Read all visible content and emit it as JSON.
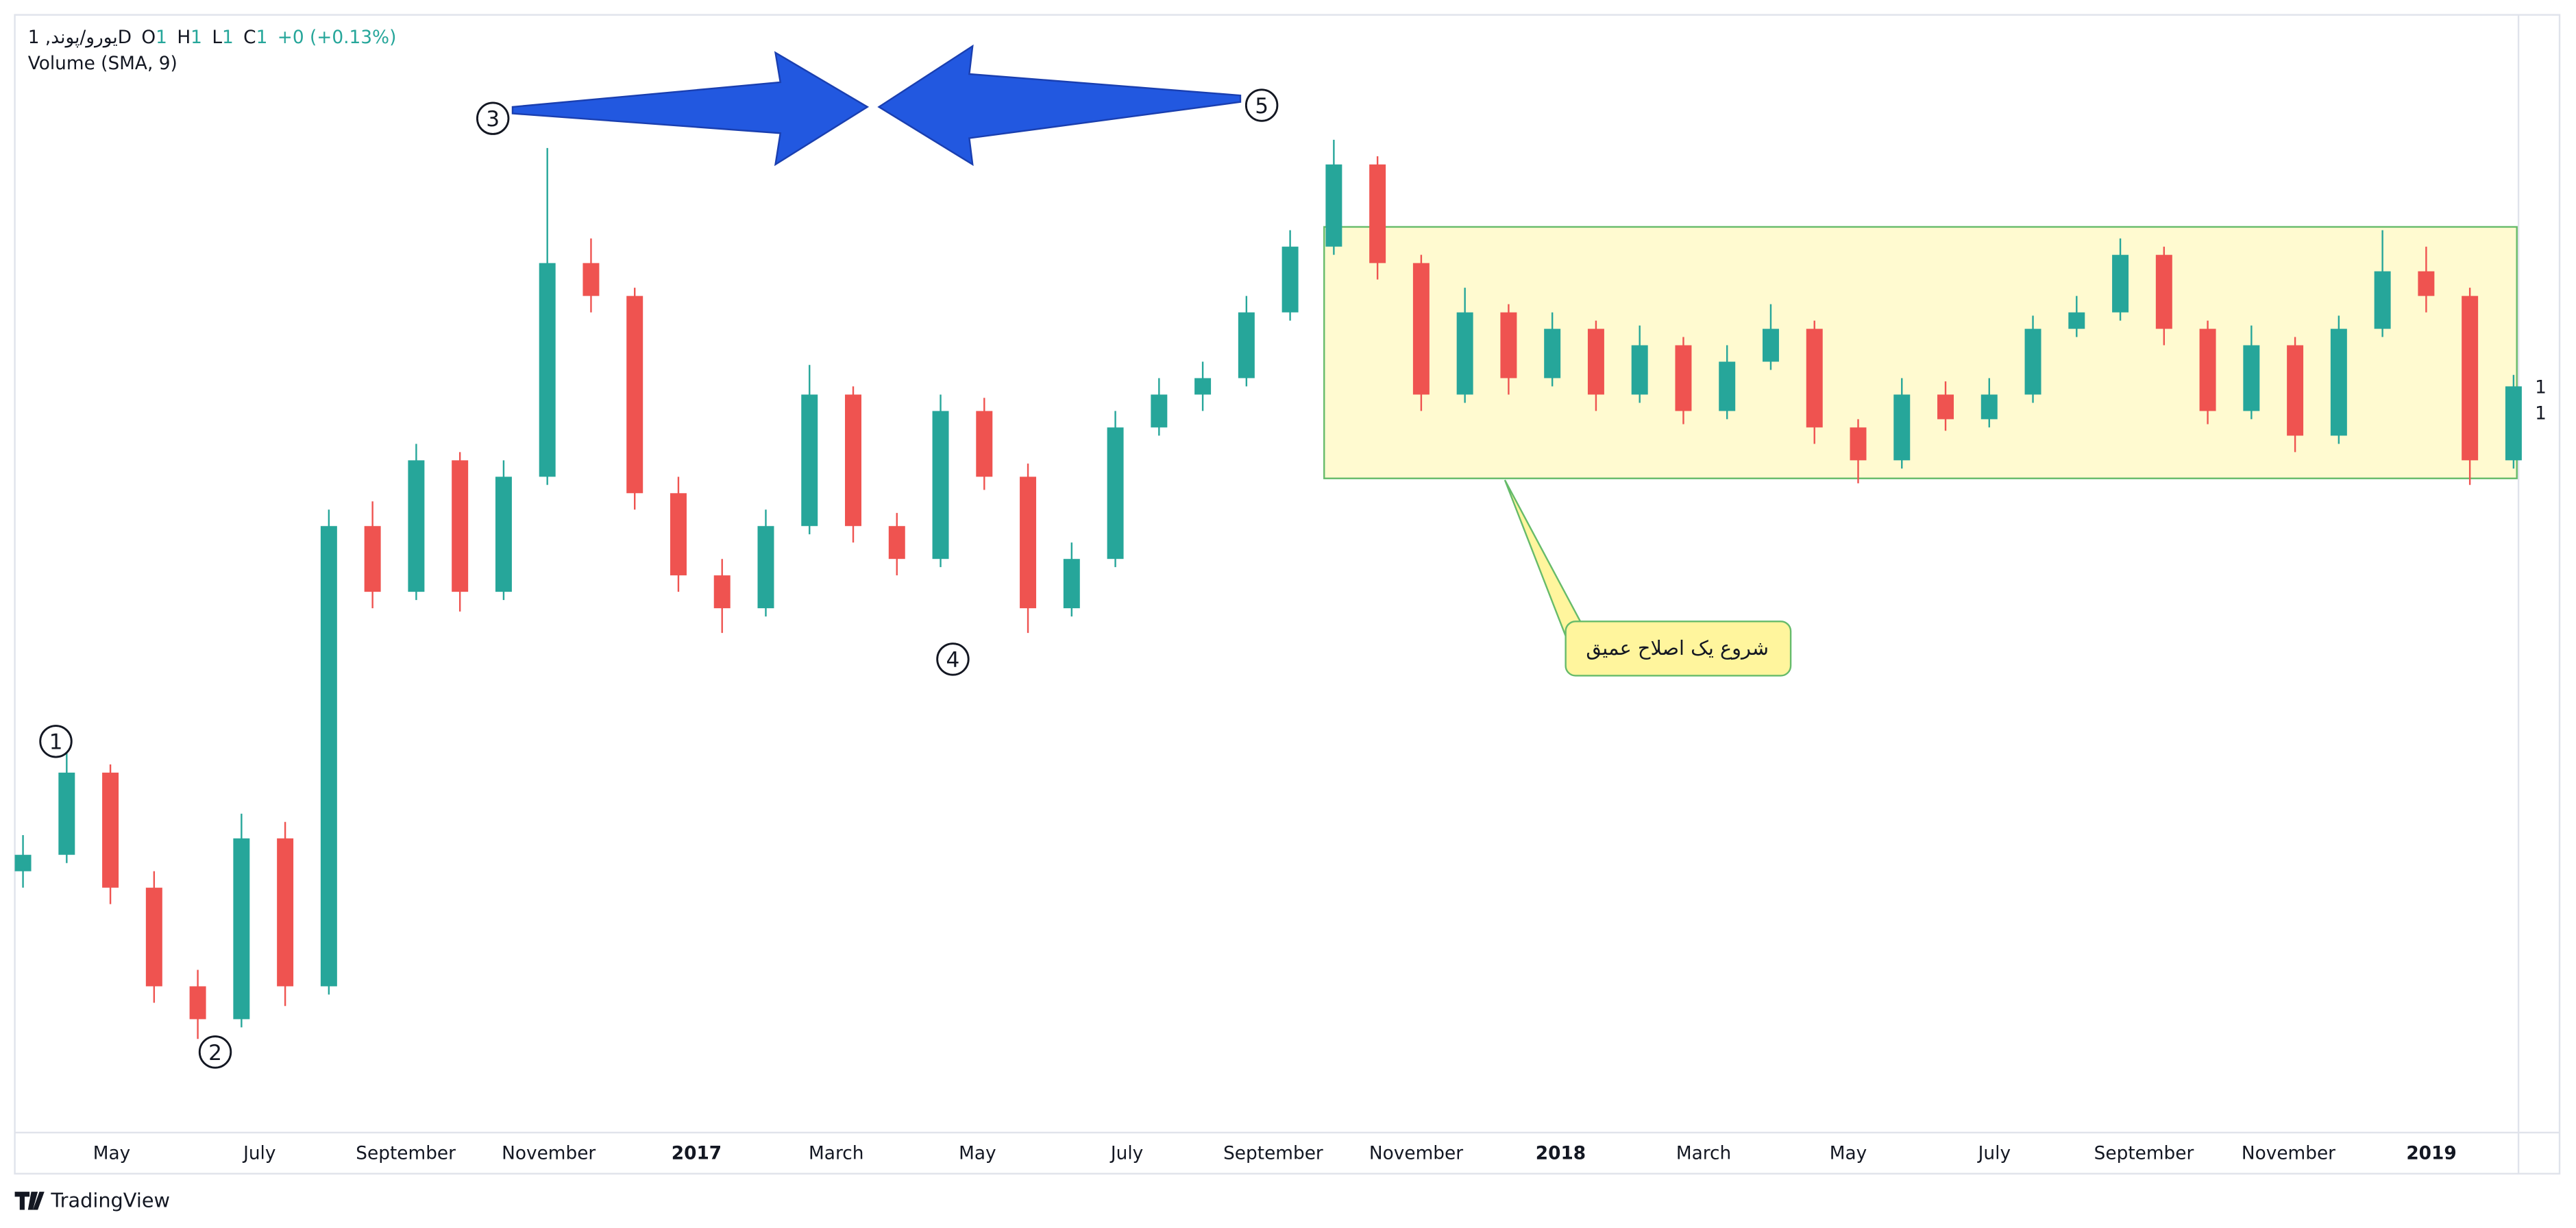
{
  "chart_data": {
    "type": "candlestick",
    "legend": {
      "symbol": "یورو/پوند, 1D",
      "o_label": "O",
      "o": "1",
      "h_label": "H",
      "h": "1",
      "l_label": "L",
      "l": "1",
      "c_label": "C",
      "c": "1",
      "change": "+0 (+0.13%)"
    },
    "indicator": "Volume (SMA, 9)",
    "price_labels": [
      "1",
      "1"
    ],
    "wave_labels": [
      "1",
      "2",
      "3",
      "4",
      "5"
    ],
    "callout": "شروع یک اصلاح عمیق",
    "x_labels": [
      "May",
      "July",
      "September",
      "November",
      "2017",
      "March",
      "May",
      "July",
      "September",
      "November",
      "2018",
      "March",
      "May",
      "July",
      "September",
      "November",
      "2019"
    ],
    "brand": "TradingView",
    "up_color": "#26a69a",
    "down_color": "#ef5350",
    "ylim": [
      0,
      680
    ],
    "ohlc": [
      [
        160,
        182,
        150,
        170
      ],
      [
        170,
        232,
        165,
        220
      ],
      [
        220,
        225,
        140,
        150
      ],
      [
        150,
        160,
        80,
        90
      ],
      [
        90,
        100,
        58,
        70
      ],
      [
        70,
        195,
        65,
        180
      ],
      [
        180,
        190,
        78,
        90
      ],
      [
        90,
        380,
        85,
        370
      ],
      [
        370,
        385,
        320,
        330
      ],
      [
        330,
        420,
        325,
        410
      ],
      [
        410,
        415,
        318,
        330
      ],
      [
        330,
        410,
        325,
        400
      ],
      [
        400,
        600,
        395,
        530
      ],
      [
        530,
        545,
        500,
        510
      ],
      [
        510,
        515,
        380,
        390
      ],
      [
        390,
        400,
        330,
        340
      ],
      [
        340,
        350,
        305,
        320
      ],
      [
        320,
        380,
        315,
        370
      ],
      [
        370,
        468,
        365,
        450
      ],
      [
        450,
        455,
        360,
        370
      ],
      [
        370,
        378,
        340,
        350
      ],
      [
        350,
        450,
        345,
        440
      ],
      [
        440,
        448,
        392,
        400
      ],
      [
        400,
        408,
        305,
        320
      ],
      [
        320,
        360,
        315,
        350
      ],
      [
        350,
        440,
        345,
        430
      ],
      [
        430,
        460,
        425,
        450
      ],
      [
        450,
        470,
        440,
        460
      ],
      [
        460,
        510,
        455,
        500
      ],
      [
        500,
        550,
        495,
        540
      ],
      [
        540,
        605,
        535,
        590
      ],
      [
        590,
        595,
        520,
        530
      ],
      [
        530,
        535,
        440,
        450
      ],
      [
        450,
        515,
        445,
        500
      ],
      [
        500,
        505,
        450,
        460
      ],
      [
        460,
        500,
        455,
        490
      ],
      [
        490,
        495,
        440,
        450
      ],
      [
        450,
        492,
        445,
        480
      ],
      [
        480,
        485,
        432,
        440
      ],
      [
        440,
        480,
        435,
        470
      ],
      [
        470,
        505,
        465,
        490
      ],
      [
        490,
        495,
        420,
        430
      ],
      [
        430,
        435,
        396,
        410
      ],
      [
        410,
        460,
        405,
        450
      ],
      [
        450,
        458,
        428,
        435
      ],
      [
        435,
        460,
        430,
        450
      ],
      [
        450,
        498,
        445,
        490
      ],
      [
        490,
        510,
        485,
        500
      ],
      [
        500,
        545,
        495,
        535
      ],
      [
        535,
        540,
        480,
        490
      ],
      [
        490,
        495,
        432,
        440
      ],
      [
        440,
        492,
        435,
        480
      ],
      [
        480,
        485,
        415,
        425
      ],
      [
        425,
        498,
        420,
        490
      ],
      [
        490,
        550,
        485,
        525
      ],
      [
        525,
        540,
        500,
        510
      ],
      [
        510,
        515,
        395,
        410
      ],
      [
        410,
        462,
        405,
        455
      ]
    ]
  }
}
